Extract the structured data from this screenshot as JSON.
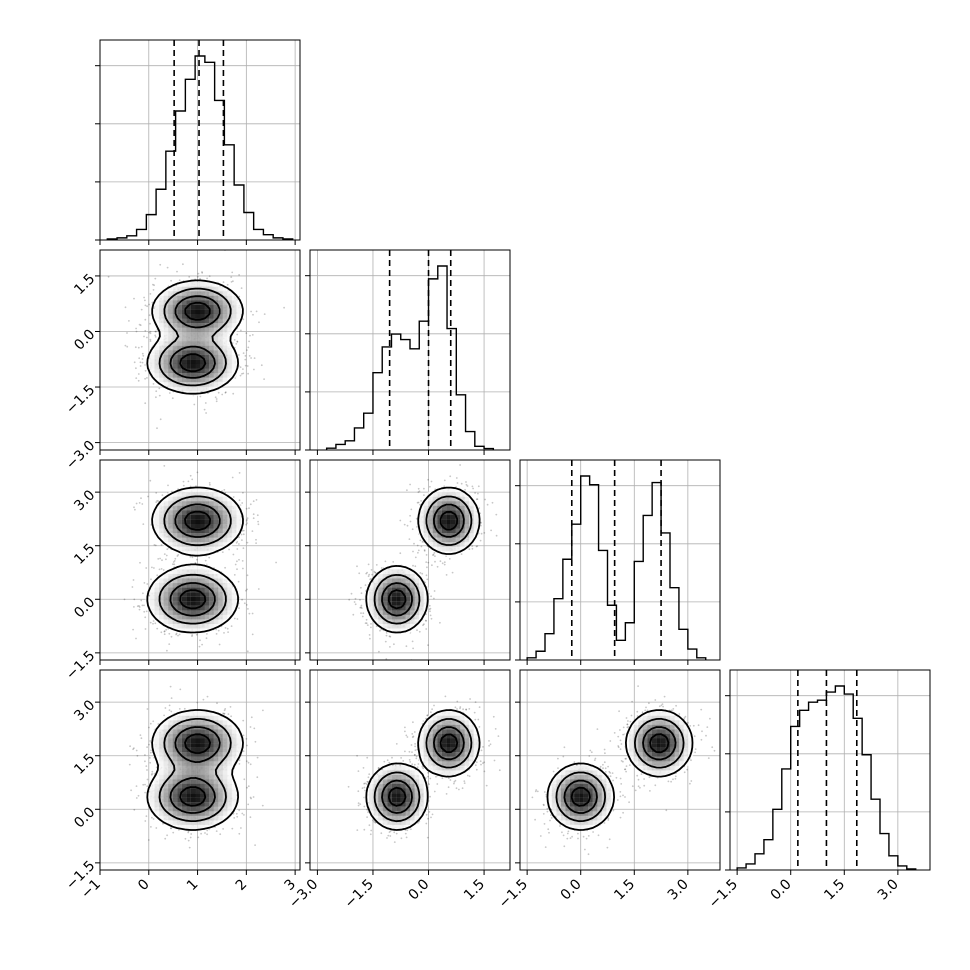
{
  "chart_data": {
    "type": "corner",
    "parameters": 4,
    "grid": true,
    "quantiles": [
      0.16,
      0.5,
      0.84
    ],
    "colors": {
      "line": "#000000",
      "grid": "#b0b0b0",
      "density": "#000000"
    },
    "axes": [
      {
        "range": [
          -1.0,
          3.1
        ],
        "ticks": [
          -1,
          0,
          1,
          2,
          3
        ],
        "tick_labels": [
          "−1",
          "0",
          "1",
          "2",
          "3"
        ]
      },
      {
        "range": [
          -3.2,
          2.2
        ],
        "ticks": [
          -3.0,
          -1.5,
          0.0,
          1.5
        ],
        "tick_labels": [
          "−3.0",
          "−1.5",
          "0.0",
          "1.5"
        ]
      },
      {
        "range": [
          -1.7,
          3.9
        ],
        "ticks": [
          -1.5,
          0.0,
          1.5,
          3.0
        ],
        "tick_labels": [
          "−1.5",
          "0.0",
          "1.5",
          "3.0"
        ]
      },
      {
        "range": [
          -1.7,
          3.9
        ],
        "ticks": [
          -1.5,
          0.0,
          1.5,
          3.0
        ],
        "tick_labels": [
          "−1.5",
          "0.0",
          "1.5",
          "3.0"
        ]
      }
    ],
    "components": [
      {
        "weight": 0.5,
        "mean": [
          1.0,
          0.55,
          2.2,
          1.85
        ],
        "sd": [
          0.45,
          0.4,
          0.45,
          0.45
        ]
      },
      {
        "weight": 0.5,
        "mean": [
          0.9,
          -0.85,
          0.0,
          0.35
        ],
        "sd": [
          0.45,
          0.4,
          0.45,
          0.45
        ]
      }
    ],
    "histograms": [
      {
        "param": 0,
        "bins": [
          -0.85,
          -0.65,
          -0.45,
          -0.25,
          -0.05,
          0.15,
          0.35,
          0.55,
          0.75,
          0.95,
          1.15,
          1.35,
          1.55,
          1.75,
          1.95,
          2.15,
          2.35,
          2.55,
          2.75,
          2.95
        ],
        "counts": [
          0.005,
          0.01,
          0.02,
          0.05,
          0.12,
          0.24,
          0.42,
          0.61,
          0.76,
          0.87,
          0.84,
          0.66,
          0.45,
          0.26,
          0.13,
          0.05,
          0.025,
          0.01,
          0.005
        ],
        "quantiles": [
          0.52,
          1.03,
          1.53
        ]
      },
      {
        "param": 1,
        "bins": [
          -2.75,
          -2.5,
          -2.25,
          -2.0,
          -1.75,
          -1.5,
          -1.25,
          -1.0,
          -0.75,
          -0.5,
          -0.25,
          0.0,
          0.25,
          0.5,
          0.75,
          1.0,
          1.25,
          1.5,
          1.75
        ],
        "counts": [
          0.01,
          0.03,
          0.05,
          0.12,
          0.2,
          0.42,
          0.56,
          0.63,
          0.6,
          0.55,
          0.7,
          0.93,
          1.0,
          0.66,
          0.3,
          0.1,
          0.02,
          0.008
        ],
        "quantiles": [
          -1.05,
          0.0,
          0.6
        ]
      },
      {
        "param": 2,
        "bins": [
          -1.5,
          -1.25,
          -1.0,
          -0.75,
          -0.5,
          -0.25,
          0.0,
          0.25,
          0.5,
          0.75,
          1.0,
          1.25,
          1.5,
          1.75,
          2.0,
          2.25,
          2.5,
          2.75,
          3.0,
          3.25,
          3.5
        ],
        "counts": [
          0.01,
          0.04,
          0.12,
          0.28,
          0.46,
          0.62,
          0.84,
          0.8,
          0.5,
          0.25,
          0.09,
          0.17,
          0.45,
          0.66,
          0.81,
          0.58,
          0.33,
          0.14,
          0.05,
          0.01
        ],
        "quantiles": [
          -0.25,
          0.95,
          2.25
        ]
      },
      {
        "param": 3,
        "bins": [
          -1.5,
          -1.25,
          -1.0,
          -0.75,
          -0.5,
          -0.25,
          0.0,
          0.25,
          0.5,
          0.75,
          1.0,
          1.25,
          1.5,
          1.75,
          2.0,
          2.25,
          2.5,
          2.75,
          3.0,
          3.25,
          3.5
        ],
        "counts": [
          0.01,
          0.03,
          0.08,
          0.15,
          0.3,
          0.5,
          0.71,
          0.79,
          0.83,
          0.84,
          0.88,
          0.91,
          0.87,
          0.75,
          0.57,
          0.35,
          0.18,
          0.07,
          0.02,
          0.005
        ],
        "quantiles": [
          0.2,
          1.0,
          1.85
        ]
      }
    ],
    "scatter_points_per_panel": 1400,
    "density_peak_grey": "#000000"
  }
}
